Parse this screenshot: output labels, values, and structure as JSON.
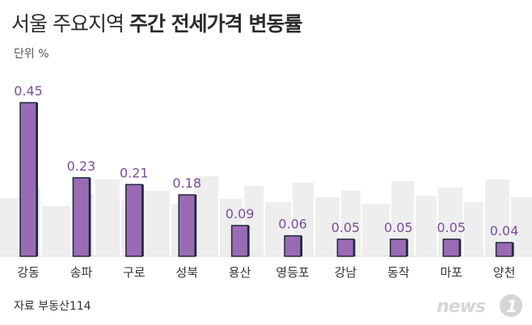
{
  "header": {
    "title_part1": "서울 주요지역",
    "title_part2": "주간 전세가격 변동률",
    "unit": "단위 %"
  },
  "footer": {
    "source": "자료  부동산114",
    "logo_text": "news1"
  },
  "colors": {
    "bar_fill": "#9a6bb5",
    "bar_edge": "#1f2a3a",
    "value_label": "#7a4e9a",
    "skyline": "#eeeeee"
  },
  "chart_data": {
    "type": "bar",
    "title": "서울 주요지역 주간 전세가격 변동률",
    "ylabel": "단위 %",
    "xlabel": "",
    "categories": [
      "강동",
      "송파",
      "구로",
      "성북",
      "용산",
      "영등포",
      "강남",
      "동작",
      "마포",
      "양천"
    ],
    "values": [
      0.45,
      0.23,
      0.21,
      0.18,
      0.09,
      0.06,
      0.05,
      0.05,
      0.05,
      0.04
    ],
    "value_labels": [
      "0.45",
      "0.23",
      "0.21",
      "0.18",
      "0.09",
      "0.06",
      "0.05",
      "0.05",
      "0.05",
      "0.04"
    ],
    "ylim": [
      0,
      0.45
    ],
    "grid": false,
    "legend": "none"
  }
}
